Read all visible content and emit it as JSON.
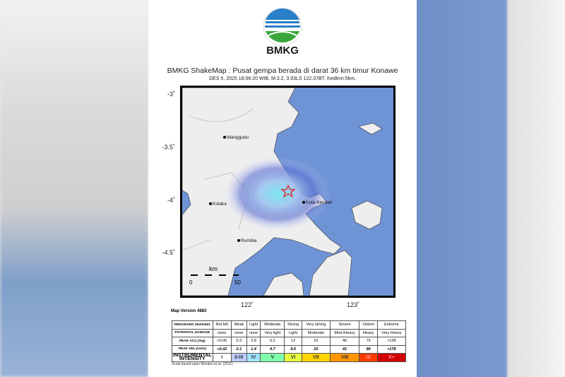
{
  "brand": "BMKG",
  "title": "BMKG ShakeMap : Pusat gempa berada di darat 36 km timur Konawe",
  "subtitle": "DES 5, 2025 18:06:20 WIB, M:3.2, 3.93LS 122.37BT, Kedlmn:5km,",
  "map": {
    "lat_ticks": [
      "-3˚",
      "-3.5˚",
      "-4˚",
      "-4.5˚"
    ],
    "lon_ticks": [
      "122˚",
      "123˚"
    ],
    "cities": [
      "Wanggudu",
      "Kolaka",
      "Kota Kendari",
      "Rumbia"
    ],
    "scale_unit": "km",
    "scale_labels": [
      "0",
      "50"
    ],
    "epicenter_color": "#e02020",
    "water_color": "#6f94d6"
  },
  "map_version": "Map Version 4883",
  "legend": {
    "rows": [
      {
        "label": "PERCEIVED SHAKING",
        "values": [
          "Not felt",
          "Weak",
          "Light",
          "Moderate",
          "Strong",
          "Very strong",
          "Severe",
          "Violent",
          "Extreme"
        ]
      },
      {
        "label": "POTENTIAL DAMAGE",
        "values": [
          "none",
          "none",
          "none",
          "Very light",
          "Light",
          "Moderate",
          "Mod./Heavy",
          "Heavy",
          "Very Heavy"
        ]
      },
      {
        "label": "PEAK ACC.(%g)",
        "values": [
          "<0.05",
          "0.3",
          "2.8",
          "6.2",
          "12",
          "22",
          "40",
          "75",
          ">139"
        ]
      },
      {
        "label": "PEAK VEL.(cm/s)",
        "values": [
          "<0.02",
          "0.1",
          "1.4",
          "4.7",
          "9.6",
          "20",
          "41",
          "86",
          ">178"
        ]
      },
      {
        "label": "INSTRUMENTAL INTENSITY",
        "values": [
          "I",
          "II-III",
          "IV",
          "V",
          "VI",
          "VII",
          "VIII",
          "IX",
          "X+"
        ]
      }
    ],
    "intensity_colors": [
      "#ffffff",
      "#bfccff",
      "#a0e6ff",
      "#80ffaa",
      "#e6ff3c",
      "#ffd200",
      "#ff9600",
      "#ff3c00",
      "#d20000"
    ],
    "note": "Scale based upon Worden et al. (2011)"
  }
}
